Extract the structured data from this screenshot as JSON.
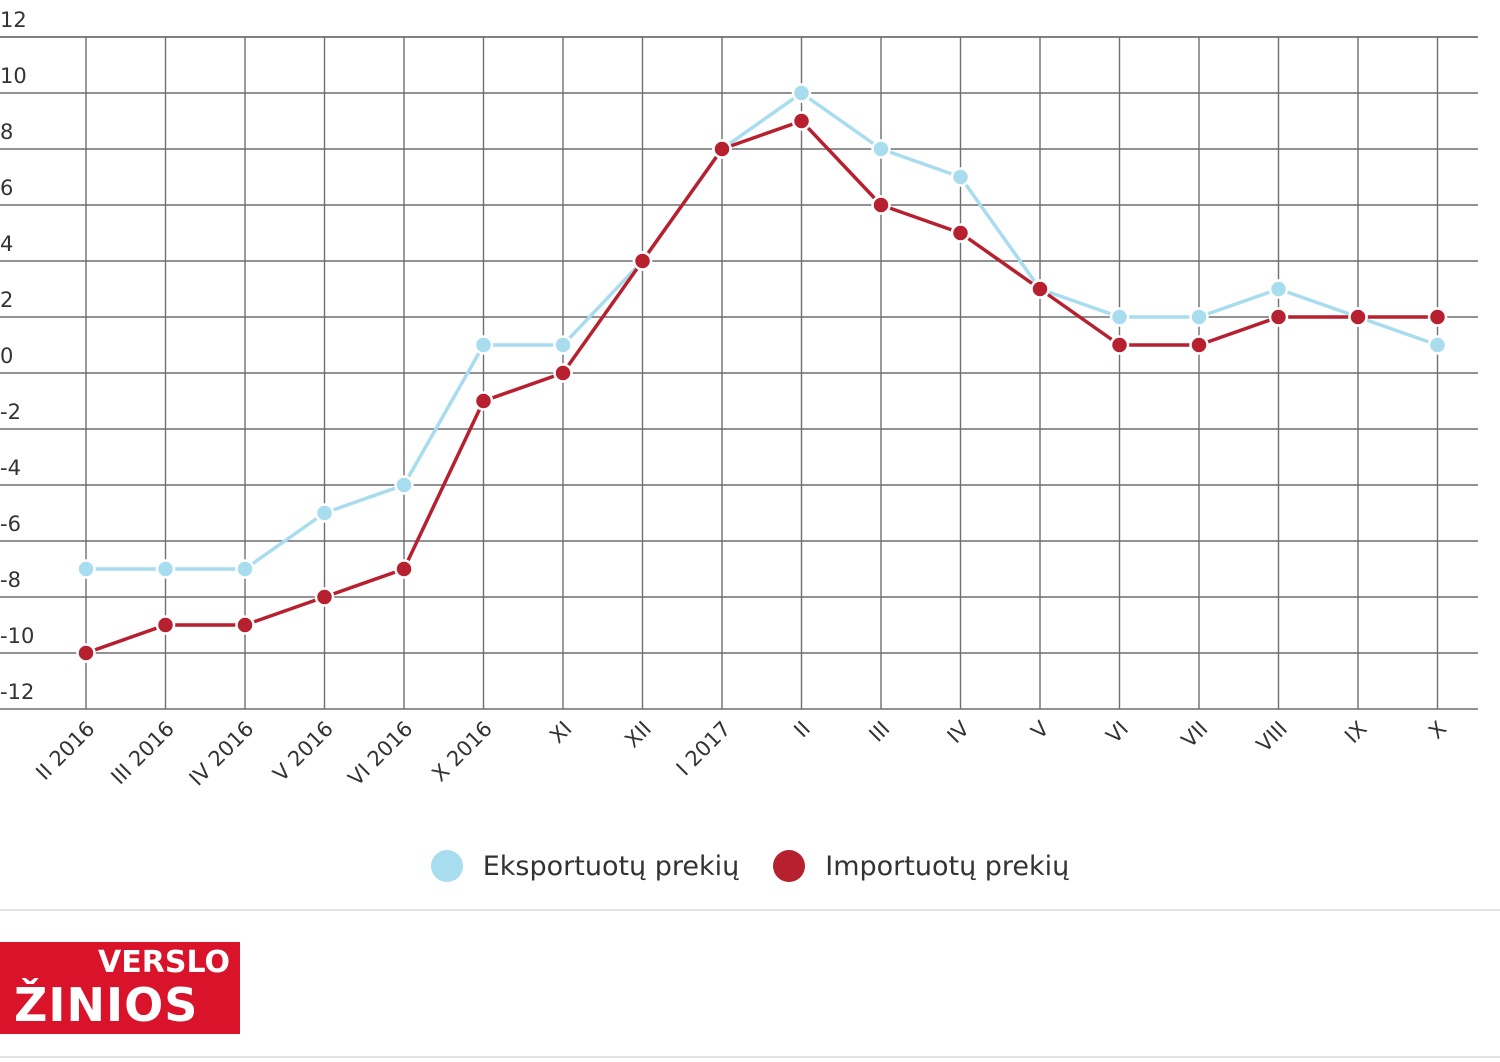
{
  "chart_data": {
    "type": "line",
    "categories": [
      "II 2016",
      "III 2016",
      "IV 2016",
      "V 2016",
      "VI 2016",
      "X 2016",
      "XI",
      "XII",
      "I 2017",
      "II",
      "III",
      "IV",
      "V",
      "VI",
      "VII",
      "VIII",
      "IX",
      "X"
    ],
    "series": [
      {
        "name": "Eksportuotų prekių",
        "color": "#a8dcef",
        "values": [
          -7,
          -7,
          -7,
          -5,
          -4,
          1,
          1,
          4,
          8,
          10,
          8,
          7,
          3,
          2,
          2,
          3,
          2,
          1
        ]
      },
      {
        "name": "Importuotų prekių",
        "color": "#b7202e",
        "values": [
          -10,
          -9,
          -9,
          -8,
          -7,
          -1,
          0,
          4,
          8,
          9,
          6,
          5,
          3,
          1,
          1,
          2,
          2,
          2
        ]
      }
    ],
    "yticks": [
      "12",
      "10",
      "8",
      "6",
      "4",
      "2",
      "0",
      "-2",
      "-4",
      "-6",
      "-8",
      "-10",
      "-12"
    ],
    "ylim": [
      -12,
      12
    ],
    "grid": true,
    "legend_position": "bottom-center"
  },
  "branding": {
    "logo_top": "VERSLO",
    "logo_bottom": "ŽINIOS",
    "logo_color": "#d8132a"
  }
}
